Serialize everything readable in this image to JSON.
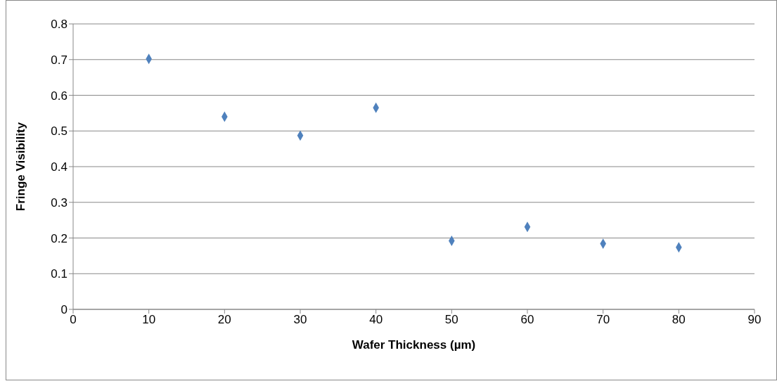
{
  "chart_data": {
    "type": "scatter",
    "xlabel": "Wafer Thickness (µm)",
    "ylabel": "Fringe Visibility",
    "x": [
      10,
      20,
      30,
      40,
      50,
      60,
      70,
      80
    ],
    "values": [
      0.702,
      0.54,
      0.487,
      0.565,
      0.192,
      0.231,
      0.184,
      0.174
    ],
    "color": "#4f81bd",
    "marker": "diamond",
    "xlim": [
      0,
      90
    ],
    "xticks": [
      0,
      10,
      20,
      30,
      40,
      50,
      60,
      70,
      80,
      90
    ],
    "ylim": [
      0,
      0.8
    ],
    "yticks": [
      0,
      0.1,
      0.2,
      0.3,
      0.4,
      0.5,
      0.6,
      0.7,
      0.8
    ],
    "grid": "y"
  }
}
